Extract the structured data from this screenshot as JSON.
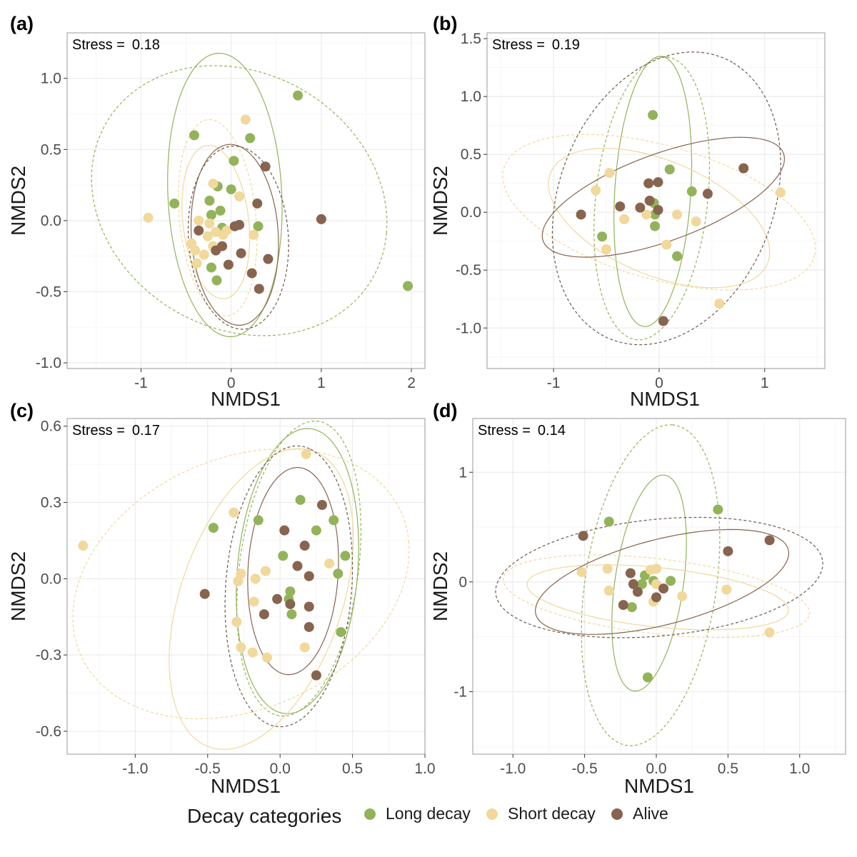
{
  "colors": {
    "long_decay": "#93b35a",
    "short_decay": "#f1d89b",
    "alive": "#87644f",
    "grid": "#ebebeb",
    "panel_border": "#999999"
  },
  "legend": {
    "title": "Decay categories",
    "entries": [
      {
        "key": "long",
        "label": "Long decay"
      },
      {
        "key": "short",
        "label": "Short decay"
      },
      {
        "key": "alive",
        "label": "Alive"
      }
    ]
  },
  "chart_data": [
    {
      "type": "scatter",
      "panel_label": "(a)",
      "stress_label": "Stress =",
      "stress_value": "0.18",
      "xlabel": "NMDS1",
      "ylabel": "NMDS2",
      "xlim": [
        -1.82,
        2.15
      ],
      "ylim": [
        -1.04,
        1.32
      ],
      "xticks": [
        -1,
        0,
        1,
        2
      ],
      "xtick_labels": [
        "-1",
        "0",
        "1",
        "2"
      ],
      "yticks": [
        -1.0,
        -0.5,
        0.0,
        0.5,
        1.0
      ],
      "ytick_labels": [
        "-1.0",
        "-0.5",
        "0.0",
        "0.5",
        "1.0"
      ],
      "grid": true,
      "series": [
        {
          "key": "long",
          "points": [
            [
              0.74,
              0.88
            ],
            [
              -0.41,
              0.6
            ],
            [
              0.21,
              0.58
            ],
            [
              0.03,
              0.42
            ],
            [
              -0.63,
              0.12
            ],
            [
              -0.15,
              0.24
            ],
            [
              0.0,
              0.22
            ],
            [
              -0.24,
              0.14
            ],
            [
              -0.12,
              0.07
            ],
            [
              -0.22,
              0.04
            ],
            [
              -0.1,
              -0.05
            ],
            [
              0.3,
              -0.04
            ],
            [
              -0.22,
              -0.33
            ],
            [
              -0.16,
              -0.42
            ],
            [
              1.96,
              -0.46
            ]
          ]
        },
        {
          "key": "short",
          "points": [
            [
              0.16,
              0.71
            ],
            [
              -0.92,
              0.02
            ],
            [
              -0.2,
              0.26
            ],
            [
              0.09,
              0.17
            ],
            [
              -0.36,
              0.0
            ],
            [
              -0.24,
              -0.02
            ],
            [
              -0.05,
              -0.07
            ],
            [
              -0.17,
              -0.08
            ],
            [
              -0.26,
              -0.11
            ],
            [
              -0.09,
              -0.1
            ],
            [
              0.25,
              -0.1
            ],
            [
              -0.44,
              -0.16
            ],
            [
              -0.4,
              -0.21
            ],
            [
              -0.3,
              -0.24
            ],
            [
              -0.38,
              -0.3
            ],
            [
              -0.2,
              -0.18
            ]
          ]
        },
        {
          "key": "alive",
          "points": [
            [
              0.38,
              0.38
            ],
            [
              0.29,
              0.12
            ],
            [
              1.0,
              0.01
            ],
            [
              0.09,
              -0.03
            ],
            [
              0.04,
              -0.04
            ],
            [
              -0.36,
              -0.07
            ],
            [
              -0.1,
              -0.18
            ],
            [
              -0.17,
              -0.21
            ],
            [
              0.11,
              -0.23
            ],
            [
              0.41,
              -0.27
            ],
            [
              -0.03,
              -0.31
            ],
            [
              0.23,
              -0.37
            ],
            [
              0.31,
              -0.48
            ]
          ]
        }
      ],
      "ellipses": [
        {
          "key": "long",
          "style": "dashed",
          "cx": 0.09,
          "cy": 0.14,
          "rx": 1.65,
          "ry": 0.93,
          "angle": -8
        },
        {
          "key": "long",
          "style": "solid",
          "cx": -0.07,
          "cy": 0.18,
          "rx": 0.63,
          "ry": 1.0,
          "angle": 6
        },
        {
          "key": "short",
          "style": "dashed",
          "cx": -0.15,
          "cy": 0.02,
          "rx": 0.42,
          "ry": 0.7,
          "angle": 12
        },
        {
          "key": "short",
          "style": "solid",
          "cx": -0.17,
          "cy": -0.01,
          "rx": 0.36,
          "ry": 0.55,
          "angle": 15
        },
        {
          "key": "alive",
          "style": "dashed",
          "cx": 0.08,
          "cy": -0.12,
          "rx": 0.55,
          "ry": 0.65,
          "angle": 15
        },
        {
          "key": "alive",
          "style": "solid",
          "cx": 0.04,
          "cy": -0.1,
          "rx": 0.48,
          "ry": 0.64,
          "angle": 10
        }
      ]
    },
    {
      "type": "scatter",
      "panel_label": "(b)",
      "stress_label": "Stress =",
      "stress_value": "0.19",
      "xlabel": "NMDS1",
      "ylabel": "NMDS2",
      "xlim": [
        -1.63,
        1.57
      ],
      "ylim": [
        -1.35,
        1.55
      ],
      "xticks": [
        -1,
        0,
        1
      ],
      "xtick_labels": [
        "-1",
        "0",
        "1"
      ],
      "yticks": [
        -1.0,
        -0.5,
        0.0,
        0.5,
        1.0,
        1.5
      ],
      "ytick_labels": [
        "-1.0",
        "-0.5",
        "0.0",
        "0.5",
        "1.0",
        "1.5"
      ],
      "grid": true,
      "series": [
        {
          "key": "long",
          "points": [
            [
              -0.06,
              0.84
            ],
            [
              0.1,
              0.37
            ],
            [
              0.31,
              0.18
            ],
            [
              -0.05,
              0.08
            ],
            [
              -0.04,
              -0.02
            ],
            [
              -0.54,
              -0.21
            ],
            [
              -0.04,
              -0.12
            ],
            [
              0.17,
              -0.38
            ]
          ]
        },
        {
          "key": "short",
          "points": [
            [
              -0.47,
              0.34
            ],
            [
              -0.6,
              0.19
            ],
            [
              -0.33,
              -0.06
            ],
            [
              -0.12,
              -0.02
            ],
            [
              0.17,
              -0.02
            ],
            [
              0.35,
              -0.08
            ],
            [
              -0.5,
              -0.32
            ],
            [
              0.07,
              -0.28
            ],
            [
              0.57,
              -0.79
            ],
            [
              1.15,
              0.17
            ]
          ]
        },
        {
          "key": "alive",
          "points": [
            [
              -0.1,
              0.25
            ],
            [
              -0.01,
              0.26
            ],
            [
              0.8,
              0.38
            ],
            [
              -0.37,
              0.05
            ],
            [
              -0.18,
              0.04
            ],
            [
              -0.09,
              0.1
            ],
            [
              -0.01,
              0.02
            ],
            [
              -0.74,
              -0.02
            ],
            [
              0.46,
              0.16
            ],
            [
              0.04,
              -0.94
            ]
          ]
        }
      ],
      "ellipses": [
        {
          "key": "long",
          "style": "dashed",
          "cx": -0.07,
          "cy": 0.12,
          "rx": 1.23,
          "ry": 0.53,
          "angle": 83
        },
        {
          "key": "long",
          "style": "solid",
          "cx": -0.06,
          "cy": 0.18,
          "rx": 1.17,
          "ry": 0.36,
          "angle": 86
        },
        {
          "key": "short",
          "style": "dashed",
          "cx": 0.0,
          "cy": 0.0,
          "rx": 1.52,
          "ry": 0.58,
          "angle": -14
        },
        {
          "key": "short",
          "style": "solid",
          "cx": 0.0,
          "cy": -0.05,
          "rx": 1.1,
          "ry": 0.5,
          "angle": -20
        },
        {
          "key": "alive",
          "style": "dashed",
          "cx": 0.07,
          "cy": 0.12,
          "rx": 1.33,
          "ry": 1.0,
          "angle": 62
        },
        {
          "key": "alive",
          "style": "solid",
          "cx": 0.04,
          "cy": 0.13,
          "rx": 1.2,
          "ry": 0.38,
          "angle": 18
        }
      ]
    },
    {
      "type": "scatter",
      "panel_label": "(c)",
      "stress_label": "Stress =",
      "stress_value": "0.17",
      "xlabel": "NMDS1",
      "ylabel": "NMDS2",
      "xlim": [
        -1.47,
        1.0
      ],
      "ylim": [
        -0.69,
        0.63
      ],
      "xticks": [
        -1.0,
        -0.5,
        0.0,
        0.5,
        1.0
      ],
      "xtick_labels": [
        "-1.0",
        "-0.5",
        "0.0",
        "0.5",
        "1.0"
      ],
      "yticks": [
        -0.6,
        -0.3,
        0.0,
        0.3,
        0.6
      ],
      "ytick_labels": [
        "-0.6",
        "-0.3",
        "0.0",
        "0.3",
        "0.6"
      ],
      "grid": true,
      "series": [
        {
          "key": "long",
          "points": [
            [
              0.14,
              0.31
            ],
            [
              -0.15,
              0.23
            ],
            [
              0.37,
              0.23
            ],
            [
              -0.46,
              0.2
            ],
            [
              0.25,
              0.19
            ],
            [
              0.45,
              0.09
            ],
            [
              0.02,
              0.09
            ],
            [
              0.4,
              0.02
            ],
            [
              0.07,
              -0.05
            ],
            [
              0.06,
              -0.08
            ],
            [
              0.08,
              -0.14
            ],
            [
              0.42,
              -0.21
            ]
          ]
        },
        {
          "key": "short",
          "points": [
            [
              0.18,
              0.49
            ],
            [
              -1.36,
              0.13
            ],
            [
              -0.32,
              0.26
            ],
            [
              0.34,
              0.06
            ],
            [
              -0.1,
              0.03
            ],
            [
              -0.27,
              0.02
            ],
            [
              -0.17,
              0.0
            ],
            [
              -0.29,
              -0.01
            ],
            [
              0.2,
              0.01
            ],
            [
              -0.18,
              -0.09
            ],
            [
              -0.3,
              -0.17
            ],
            [
              -0.27,
              -0.27
            ],
            [
              -0.19,
              -0.29
            ],
            [
              0.17,
              -0.27
            ],
            [
              -0.09,
              -0.31
            ]
          ]
        },
        {
          "key": "alive",
          "points": [
            [
              0.29,
              0.29
            ],
            [
              0.03,
              0.19
            ],
            [
              0.17,
              0.13
            ],
            [
              0.12,
              0.05
            ],
            [
              0.2,
              0.01
            ],
            [
              -0.02,
              -0.08
            ],
            [
              0.07,
              -0.1
            ],
            [
              -0.52,
              -0.06
            ],
            [
              -0.11,
              -0.14
            ],
            [
              0.2,
              -0.11
            ],
            [
              0.2,
              -0.19
            ],
            [
              0.25,
              -0.38
            ]
          ]
        }
      ],
      "ellipses": [
        {
          "key": "long",
          "style": "dashed",
          "cx": 0.13,
          "cy": 0.04,
          "rx": 0.6,
          "ry": 0.4,
          "angle": 70
        },
        {
          "key": "long",
          "style": "solid",
          "cx": 0.12,
          "cy": 0.03,
          "rx": 0.57,
          "ry": 0.41,
          "angle": 75
        },
        {
          "key": "short",
          "style": "dashed",
          "cx": -0.27,
          "cy": -0.02,
          "rx": 1.17,
          "ry": 0.51,
          "angle": 8
        },
        {
          "key": "short",
          "style": "solid",
          "cx": -0.13,
          "cy": -0.08,
          "rx": 0.73,
          "ry": 0.47,
          "angle": 40
        },
        {
          "key": "alive",
          "style": "dashed",
          "cx": 0.06,
          "cy": -0.03,
          "rx": 0.56,
          "ry": 0.43,
          "angle": 75
        },
        {
          "key": "alive",
          "style": "solid",
          "cx": 0.09,
          "cy": 0.03,
          "rx": 0.41,
          "ry": 0.31,
          "angle": 80
        }
      ]
    },
    {
      "type": "scatter",
      "panel_label": "(d)",
      "stress_label": "Stress =",
      "stress_value": "0.14",
      "xlabel": "NMDS1",
      "ylabel": "NMDS2",
      "xlim": [
        -1.28,
        1.32
      ],
      "ylim": [
        -1.57,
        1.49
      ],
      "xticks": [
        -1.0,
        -0.5,
        0.0,
        0.5,
        1.0
      ],
      "xtick_labels": [
        "-1.0",
        "-0.5",
        "0.0",
        "0.5",
        "1.0"
      ],
      "yticks": [
        -1,
        0,
        1
      ],
      "ytick_labels": [
        "-1",
        "0",
        "1"
      ],
      "grid": true,
      "series": [
        {
          "key": "long",
          "points": [
            [
              0.43,
              0.66
            ],
            [
              -0.33,
              0.55
            ],
            [
              -0.08,
              0.06
            ],
            [
              -0.02,
              0.01
            ],
            [
              0.1,
              0.01
            ],
            [
              -0.1,
              -0.02
            ],
            [
              -0.17,
              -0.23
            ],
            [
              -0.06,
              -0.87
            ]
          ]
        },
        {
          "key": "short",
          "points": [
            [
              -0.34,
              0.12
            ],
            [
              -0.52,
              0.09
            ],
            [
              -0.04,
              0.11
            ],
            [
              0.0,
              0.12
            ],
            [
              0.0,
              -0.02
            ],
            [
              -0.33,
              -0.08
            ],
            [
              0.49,
              -0.07
            ],
            [
              0.18,
              -0.13
            ],
            [
              -0.02,
              -0.18
            ],
            [
              0.79,
              -0.46
            ]
          ]
        },
        {
          "key": "alive",
          "points": [
            [
              -0.51,
              0.42
            ],
            [
              0.5,
              0.28
            ],
            [
              0.79,
              0.38
            ],
            [
              -0.18,
              0.08
            ],
            [
              -0.16,
              -0.02
            ],
            [
              -0.13,
              -0.09
            ],
            [
              0.05,
              -0.06
            ],
            [
              0.0,
              -0.14
            ],
            [
              -0.23,
              -0.21
            ]
          ]
        }
      ],
      "ellipses": [
        {
          "key": "long",
          "style": "dashed",
          "cx": -0.04,
          "cy": -0.03,
          "rx": 1.47,
          "ry": 0.46,
          "angle": 84
        },
        {
          "key": "long",
          "style": "solid",
          "cx": -0.05,
          "cy": -0.01,
          "rx": 0.99,
          "ry": 0.24,
          "angle": 84
        },
        {
          "key": "short",
          "style": "dashed",
          "cx": 0.0,
          "cy": -0.13,
          "rx": 1.08,
          "ry": 0.34,
          "angle": -9
        },
        {
          "key": "short",
          "style": "solid",
          "cx": 0.01,
          "cy": -0.14,
          "rx": 0.92,
          "ry": 0.27,
          "angle": -8
        },
        {
          "key": "alive",
          "style": "dashed",
          "cx": 0.02,
          "cy": 0.04,
          "rx": 1.15,
          "ry": 0.53,
          "angle": 8
        },
        {
          "key": "alive",
          "style": "solid",
          "cx": 0.04,
          "cy": 0.0,
          "rx": 0.93,
          "ry": 0.38,
          "angle": 20
        }
      ]
    }
  ]
}
